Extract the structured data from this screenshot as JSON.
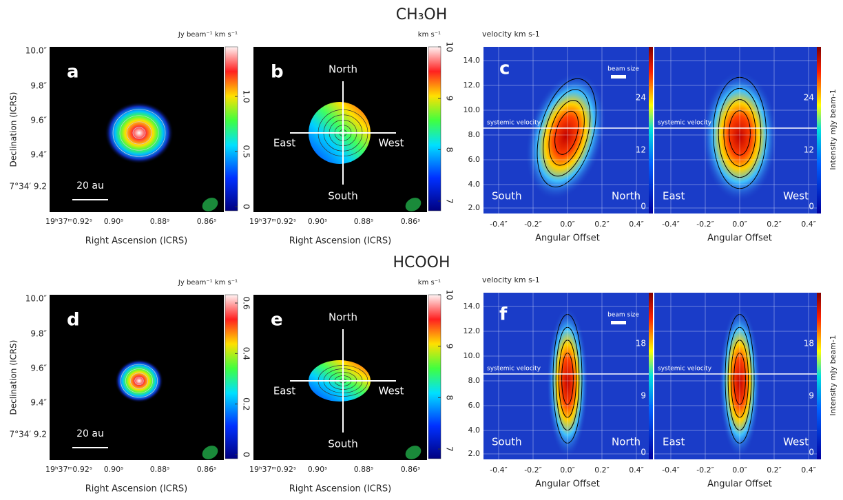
{
  "figure": {
    "axes": {
      "dec_label": "Declination (ICRS)",
      "dec_ticks": [
        "10.0″",
        "9.8″",
        "9.6″",
        "9.4″",
        "7°34′ 9.2"
      ],
      "ra_label": "Right Ascension (ICRS)",
      "ra_ticks": [
        "19ʰ37ᵐ0.92ˢ",
        "0.90ˢ",
        "0.88ˢ",
        "0.86ˢ"
      ],
      "pv_x_label": "Angular Offset",
      "pv_x_ticks": [
        "-0.4″",
        "-0.2″",
        "0.0″",
        "0.2″",
        "0.4″"
      ],
      "pv_y_ticks": [
        "14.0",
        "12.0",
        "10.0",
        "8.0",
        "6.0",
        "4.0",
        "2.0"
      ],
      "pv_y_title": "velocity km s-1",
      "intensity_title": "Intensity  mJy beam-1",
      "scale_bar": "20 au",
      "directions": {
        "north": "North",
        "south": "South",
        "east": "East",
        "west": "West"
      },
      "systemic": "systemic velocity",
      "beam": "beam size"
    },
    "rows": [
      {
        "molecule": "CH₃OH",
        "moment0": {
          "label": "a",
          "colorbar_title": "Jy beam⁻¹ km s⁻¹",
          "colorbar_ticks": [
            "0",
            "0.5",
            "1.0"
          ]
        },
        "moment1": {
          "label": "b",
          "colorbar_title": "km s⁻¹",
          "colorbar_ticks": [
            "7",
            "8",
            "9",
            "10"
          ]
        },
        "pv": {
          "label": "c",
          "intensity_ticks": [
            "0",
            "12",
            "24"
          ]
        }
      },
      {
        "molecule": "HCOOH",
        "moment0": {
          "label": "d",
          "colorbar_title": "Jy beam⁻¹ km s⁻¹",
          "colorbar_ticks": [
            "0",
            "0.2",
            "0.4",
            "0.6"
          ]
        },
        "moment1": {
          "label": "e",
          "colorbar_title": "km s⁻¹",
          "colorbar_ticks": [
            "7",
            "8",
            "9",
            "10"
          ]
        },
        "pv": {
          "label": "f",
          "intensity_ticks": [
            "0",
            "9",
            "18"
          ]
        }
      }
    ]
  }
}
